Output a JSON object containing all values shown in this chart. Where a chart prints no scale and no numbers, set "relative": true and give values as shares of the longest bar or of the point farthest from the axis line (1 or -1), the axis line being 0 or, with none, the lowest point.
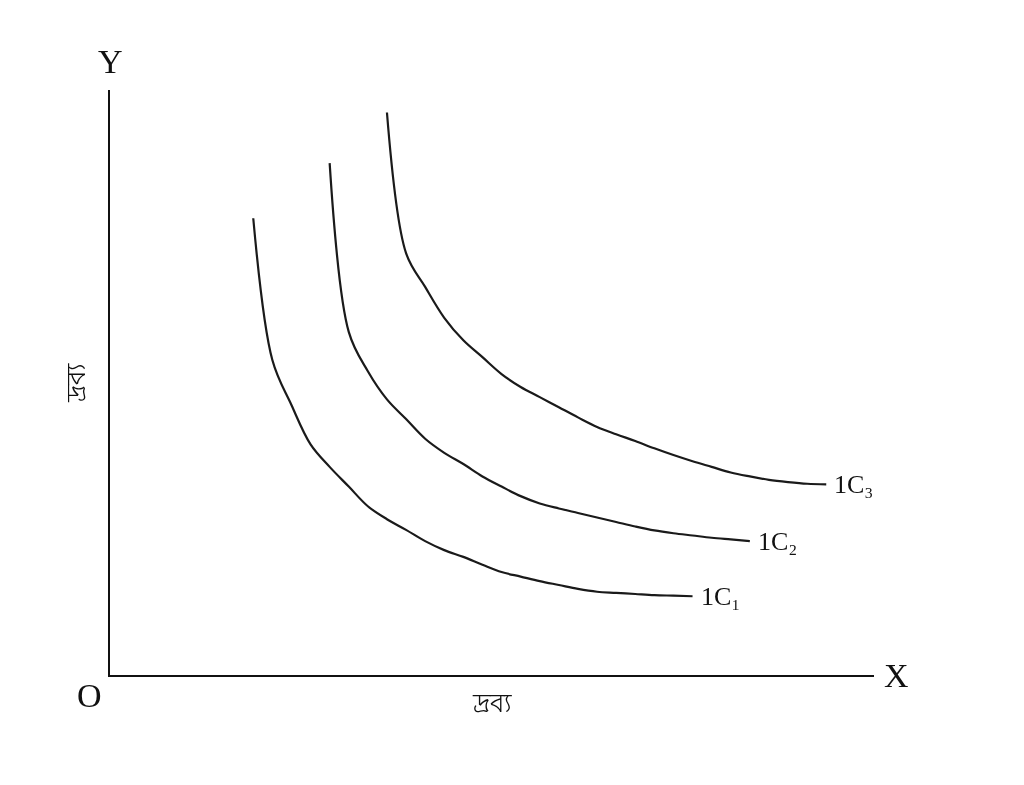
{
  "chart_data": {
    "type": "line",
    "relative": true,
    "xlabel": "দ্রব্য",
    "ylabel": "দ্রব্য",
    "legend": false,
    "marker": "none",
    "line_style": "solid",
    "annotations": [
      "O",
      "X",
      "Y"
    ],
    "categories": [
      null,
      null,
      null,
      null,
      null,
      null,
      null,
      null,
      null,
      null,
      null,
      null,
      null,
      null,
      null,
      null,
      null,
      null,
      null,
      null,
      null,
      null,
      null,
      null,
      null,
      null,
      null,
      null,
      null,
      null,
      null,
      null,
      null,
      null,
      null,
      null,
      null,
      null,
      null,
      null
    ],
    "series": [
      {
        "name": "1C₁",
        "color": "#1a1a1a",
        "values": [
          null,
          null,
          null,
          null,
          null,
          null,
          null,
          0.812,
          0.56,
          0.48,
          0.41,
          0.37,
          0.335,
          0.3,
          0.277,
          0.258,
          0.238,
          0.222,
          0.21,
          0.196,
          0.183,
          0.175,
          0.167,
          0.16,
          0.153,
          0.148,
          0.146,
          0.144,
          0.142,
          0.141,
          0.14,
          null,
          null,
          null,
          null,
          null,
          null,
          null,
          null,
          null
        ]
      },
      {
        "name": "1C₂",
        "color": "#1a1a1a",
        "values": [
          null,
          null,
          null,
          null,
          null,
          null,
          null,
          null,
          null,
          null,
          null,
          0.91,
          0.61,
          0.54,
          0.49,
          0.455,
          0.42,
          0.395,
          0.375,
          0.353,
          0.335,
          0.318,
          0.305,
          0.296,
          0.288,
          0.28,
          0.272,
          0.264,
          0.257,
          0.252,
          0.248,
          0.244,
          0.241,
          0.238,
          null,
          null,
          null,
          null,
          null,
          null
        ]
      },
      {
        "name": "1C₃",
        "color": "#1a1a1a",
        "values": [
          null,
          null,
          null,
          null,
          null,
          null,
          null,
          null,
          null,
          null,
          null,
          null,
          null,
          null,
          1.0,
          0.75,
          0.69,
          0.635,
          0.595,
          0.565,
          0.535,
          0.512,
          0.494,
          0.476,
          0.458,
          0.441,
          0.428,
          0.416,
          0.403,
          0.391,
          0.38,
          0.37,
          0.36,
          0.353,
          0.347,
          0.343,
          0.34,
          0.339,
          null,
          null
        ]
      }
    ]
  }
}
